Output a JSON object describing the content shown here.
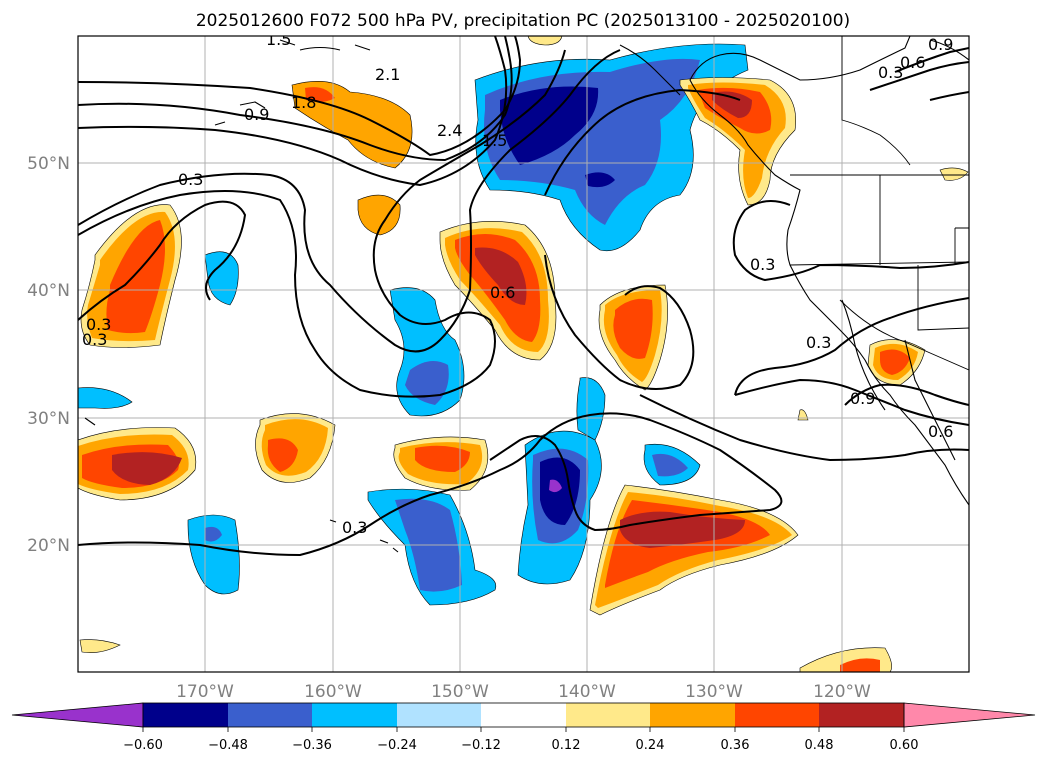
{
  "title": "2025012600 F072 500 hPa PV, precipitation PC (2025013100 - 2025020100)",
  "map": {
    "lat_labels": [
      "50°N",
      "40°N",
      "30°N",
      "20°N"
    ],
    "lon_labels": [
      "170°W",
      "160°W",
      "150°W",
      "140°W",
      "130°W",
      "120°W"
    ],
    "contour_labels": [
      "1.5",
      "2.1",
      "1.8",
      "0.9",
      "2.4",
      "1.5",
      "0.3",
      "0.6",
      "0.3",
      "0.9",
      "0.3",
      "0.3",
      "0.6",
      "0.3",
      "0.3",
      "0.9",
      "0.6",
      "0.3"
    ]
  },
  "colorbar": {
    "ticks": [
      "−0.60",
      "−0.48",
      "−0.36",
      "−0.24",
      "−0.12",
      "0.12",
      "0.24",
      "0.36",
      "0.48",
      "0.60"
    ],
    "colors": [
      "#9932cc",
      "#00008b",
      "#3a5fcd",
      "#00bfff",
      "#b0e2ff",
      "#ffffff",
      "#ffe98a",
      "#ffa500",
      "#ff4500",
      "#b22222",
      "#ff88aa"
    ]
  }
}
